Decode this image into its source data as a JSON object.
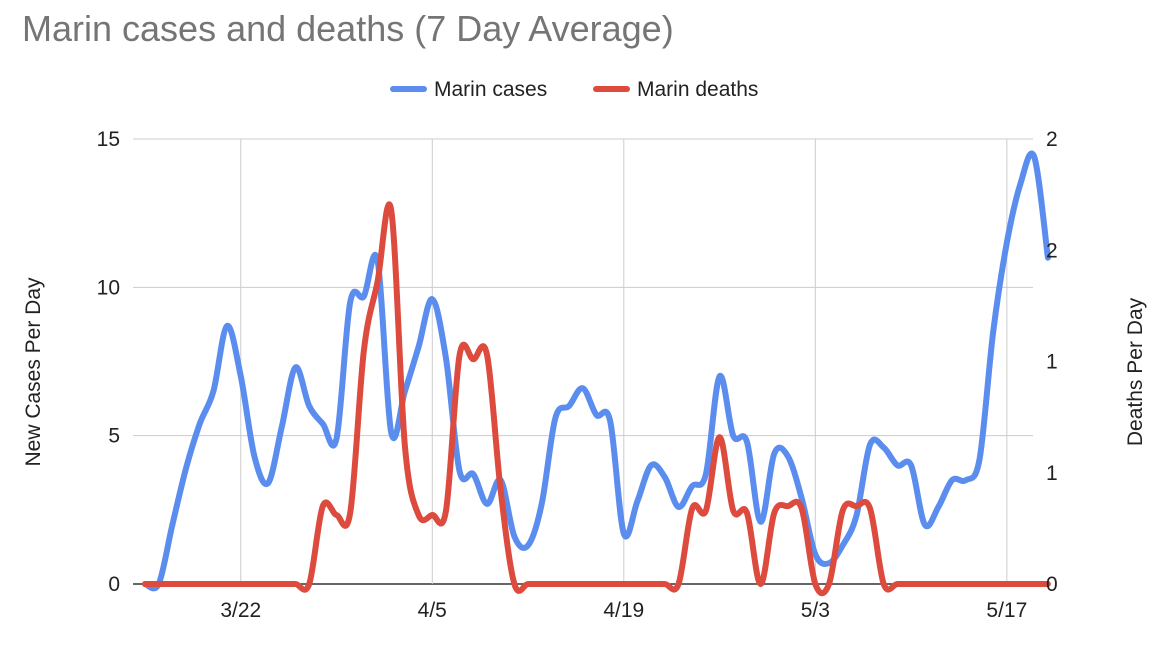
{
  "chart_data": {
    "type": "line",
    "title": "Marin cases and deaths (7 Day Average)",
    "legend_position": "top-center",
    "grid": true,
    "x_start": "3/15",
    "categories": [
      "3/22",
      "4/5",
      "4/19",
      "5/3",
      "5/17"
    ],
    "ylabel": "New Cases Per Day",
    "ylabel_right": "Deaths Per Day",
    "ylim": [
      0,
      15
    ],
    "y_ticks": [
      0,
      5,
      10,
      15
    ],
    "ylim_right": [
      0,
      2
    ],
    "y_ticks_right": [
      "0",
      "1",
      "1",
      "2",
      "2"
    ],
    "series": [
      {
        "name": "Marin cases",
        "color": "#5b8def",
        "axis": "left",
        "points": [
          [
            "3/15",
            0
          ],
          [
            "3/16",
            0
          ],
          [
            "3/17",
            2
          ],
          [
            "3/18",
            3.9
          ],
          [
            "3/19",
            5.4
          ],
          [
            "3/20",
            6.5
          ],
          [
            "3/21",
            8.7
          ],
          [
            "3/22",
            7
          ],
          [
            "3/23",
            4.3
          ],
          [
            "3/24",
            3.4
          ],
          [
            "3/25",
            5.3
          ],
          [
            "3/26",
            7.3
          ],
          [
            "3/27",
            6
          ],
          [
            "3/28",
            5.4
          ],
          [
            "3/29",
            4.9
          ],
          [
            "3/30",
            9.5
          ],
          [
            "3/31",
            9.7
          ],
          [
            "4/1",
            10.9
          ],
          [
            "4/2",
            5.1
          ],
          [
            "4/3",
            6.5
          ],
          [
            "4/4",
            8
          ],
          [
            "4/5",
            9.6
          ],
          [
            "4/6",
            7.6
          ],
          [
            "4/7",
            3.8
          ],
          [
            "4/8",
            3.7
          ],
          [
            "4/9",
            2.7
          ],
          [
            "4/10",
            3.5
          ],
          [
            "4/11",
            1.6
          ],
          [
            "4/12",
            1.3
          ],
          [
            "4/13",
            2.7
          ],
          [
            "4/14",
            5.6
          ],
          [
            "4/15",
            6
          ],
          [
            "4/16",
            6.6
          ],
          [
            "4/17",
            5.7
          ],
          [
            "4/18",
            5.5
          ],
          [
            "4/19",
            1.7
          ],
          [
            "4/20",
            2.8
          ],
          [
            "4/21",
            4
          ],
          [
            "4/22",
            3.6
          ],
          [
            "4/23",
            2.6
          ],
          [
            "4/24",
            3.3
          ],
          [
            "4/25",
            3.7
          ],
          [
            "4/26",
            7
          ],
          [
            "4/27",
            5
          ],
          [
            "4/28",
            4.8
          ],
          [
            "4/29",
            2.1
          ],
          [
            "4/30",
            4.4
          ],
          [
            "5/1",
            4.3
          ],
          [
            "5/2",
            2.9
          ],
          [
            "5/3",
            1
          ],
          [
            "5/4",
            0.7
          ],
          [
            "5/5",
            1.3
          ],
          [
            "5/6",
            2.3
          ],
          [
            "5/7",
            4.7
          ],
          [
            "5/8",
            4.6
          ],
          [
            "5/9",
            4
          ],
          [
            "5/10",
            4
          ],
          [
            "5/11",
            2
          ],
          [
            "5/12",
            2.6
          ],
          [
            "5/13",
            3.5
          ],
          [
            "5/14",
            3.5
          ],
          [
            "5/15",
            4.2
          ],
          [
            "5/16",
            8.5
          ],
          [
            "5/17",
            11.5
          ],
          [
            "5/18",
            13.5
          ],
          [
            "5/19",
            14.4
          ],
          [
            "5/20",
            11
          ]
        ]
      },
      {
        "name": "Marin deaths",
        "color": "#dc4b3e",
        "axis": "right",
        "points": [
          [
            "3/15",
            0
          ],
          [
            "3/16",
            0
          ],
          [
            "3/17",
            0
          ],
          [
            "3/18",
            0
          ],
          [
            "3/19",
            0
          ],
          [
            "3/20",
            0
          ],
          [
            "3/21",
            0
          ],
          [
            "3/22",
            0
          ],
          [
            "3/23",
            0
          ],
          [
            "3/24",
            0
          ],
          [
            "3/25",
            0
          ],
          [
            "3/26",
            0
          ],
          [
            "3/27",
            0
          ],
          [
            "3/28",
            0.35
          ],
          [
            "3/29",
            0.31
          ],
          [
            "3/30",
            0.32
          ],
          [
            "3/31",
            1.05
          ],
          [
            "4/1",
            1.36
          ],
          [
            "4/2",
            1.68
          ],
          [
            "4/3",
            0.62
          ],
          [
            "4/4",
            0.31
          ],
          [
            "4/5",
            0.31
          ],
          [
            "4/6",
            0.33
          ],
          [
            "4/7",
            1.03
          ],
          [
            "4/8",
            1.01
          ],
          [
            "4/9",
            1.03
          ],
          [
            "4/10",
            0.42
          ],
          [
            "4/11",
            0
          ],
          [
            "4/12",
            0
          ],
          [
            "4/13",
            0
          ],
          [
            "4/14",
            0
          ],
          [
            "4/15",
            0
          ],
          [
            "4/16",
            0
          ],
          [
            "4/17",
            0
          ],
          [
            "4/18",
            0
          ],
          [
            "4/19",
            0
          ],
          [
            "4/20",
            0
          ],
          [
            "4/21",
            0
          ],
          [
            "4/22",
            0
          ],
          [
            "4/23",
            0
          ],
          [
            "4/24",
            0.34
          ],
          [
            "4/25",
            0.33
          ],
          [
            "4/26",
            0.66
          ],
          [
            "4/27",
            0.33
          ],
          [
            "4/28",
            0.32
          ],
          [
            "4/29",
            0
          ],
          [
            "4/30",
            0.32
          ],
          [
            "5/1",
            0.35
          ],
          [
            "5/2",
            0.34
          ],
          [
            "5/3",
            0
          ],
          [
            "5/4",
            0
          ],
          [
            "5/5",
            0.33
          ],
          [
            "5/6",
            0.35
          ],
          [
            "5/7",
            0.34
          ],
          [
            "5/8",
            0
          ],
          [
            "5/9",
            0
          ],
          [
            "5/10",
            0
          ],
          [
            "5/11",
            0
          ],
          [
            "5/12",
            0
          ],
          [
            "5/13",
            0
          ],
          [
            "5/14",
            0
          ],
          [
            "5/15",
            0
          ],
          [
            "5/16",
            0
          ],
          [
            "5/17",
            0
          ],
          [
            "5/18",
            0
          ],
          [
            "5/19",
            0
          ],
          [
            "5/20",
            0
          ]
        ]
      }
    ]
  }
}
